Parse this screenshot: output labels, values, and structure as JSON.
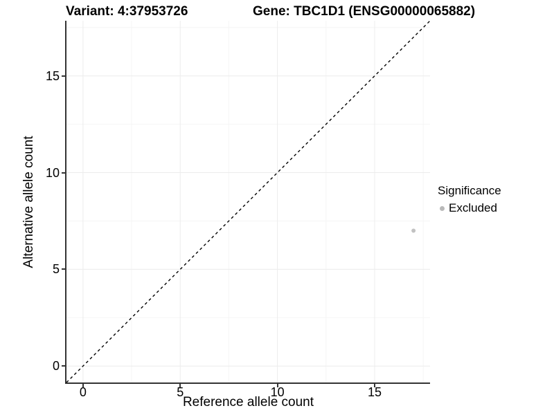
{
  "figure": {
    "background": "#ffffff",
    "text_color": "#000000"
  },
  "chart_data": {
    "type": "scatter",
    "title_left": "Variant: 4:37953726",
    "title_right": "Gene: TBC1D1 (ENSG00000065882)",
    "xlabel": "Reference allele count",
    "ylabel": "Alternative allele count",
    "xlim": [
      -0.85,
      17.85
    ],
    "ylim": [
      -0.85,
      17.85
    ],
    "x_ticks": [
      0,
      5,
      10,
      15
    ],
    "y_ticks": [
      0,
      5,
      10,
      15
    ],
    "x_minor_ticks": [
      2.5,
      7.5,
      12.5,
      17.5
    ],
    "y_minor_ticks": [
      2.5,
      7.5,
      12.5,
      17.5
    ],
    "grid": {
      "on": true,
      "major_color": "#ececec",
      "minor_color": "#f5f5f5"
    },
    "axis_color": "#333333",
    "identity_line": {
      "slope": 1,
      "intercept": 0,
      "style": "dashed",
      "color": "#000000"
    },
    "series": [
      {
        "name": "Excluded",
        "color": "#c2c2c2",
        "points": [
          {
            "x": 17,
            "y": 7
          }
        ]
      }
    ],
    "legend": {
      "position": "right",
      "title": "Significance",
      "entries": [
        {
          "label": "Excluded",
          "color": "#b9b9b9",
          "marker": "circle"
        }
      ]
    }
  }
}
